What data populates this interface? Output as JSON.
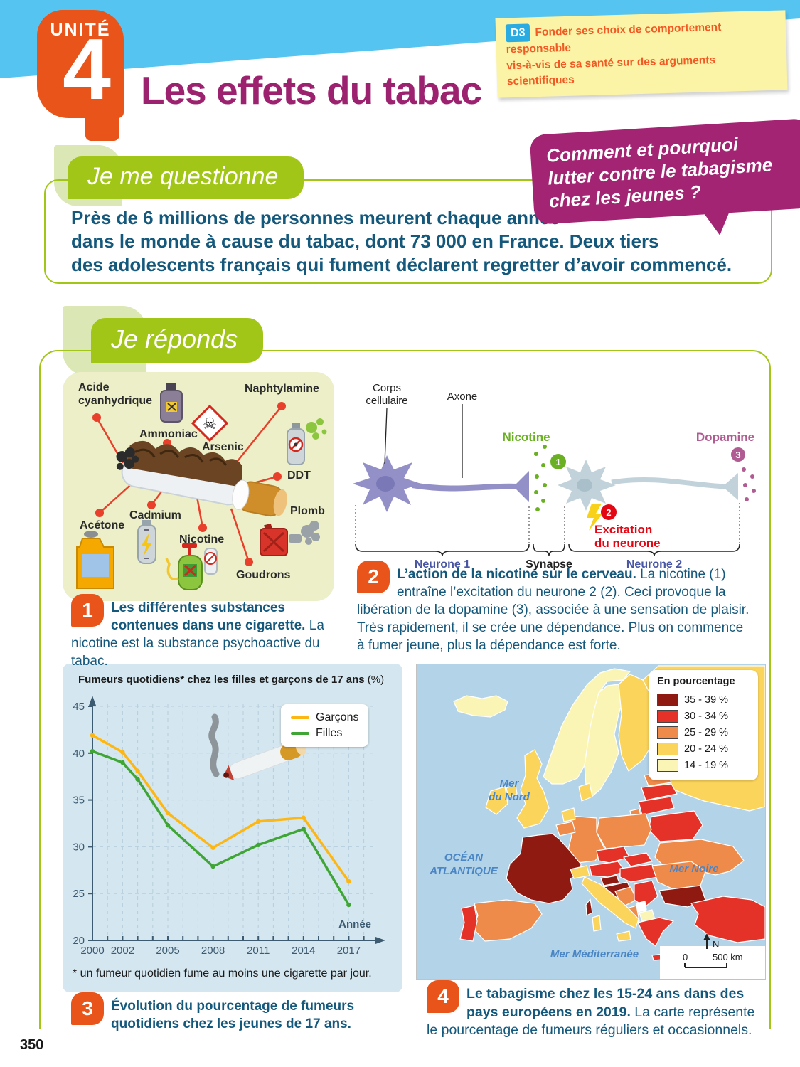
{
  "page_number": "350",
  "colors": {
    "green": "#a2c617",
    "orange": "#e8541a",
    "title_purple": "#9c2270",
    "bubble_purple": "#a32472",
    "dark_blue": "#14587c",
    "sky_blue": "#56c4f0",
    "note_bg": "#fbf4a6",
    "note_text": "#f15a24",
    "d3_blue": "#2aace2",
    "nicotine_green": "#6ab023",
    "dopamine_mauve": "#b05b92",
    "excitation_red": "#e30613"
  },
  "header": {
    "unit_label": "UNITÉ",
    "unit_number": "4",
    "title": "Les effets du tabac",
    "competence": {
      "badge": "D3",
      "line1": "Fonder ses choix de comportement responsable",
      "line2": "vis-à-vis de sa santé sur des arguments scientifiques"
    }
  },
  "question_section": {
    "banner": "Je me questionne",
    "intro_lines": [
      "Près de 6 millions de personnes meurent chaque année",
      "dans le monde à cause du tabac, dont 73 000 en France. Deux tiers",
      "des adolescents français qui fument déclarent regretter d’avoir commencé."
    ],
    "bubble_lines": [
      "Comment et pourquoi",
      "lutter contre le tabagisme",
      "chez les jeunes ?"
    ]
  },
  "answer_section": {
    "banner": "Je réponds"
  },
  "figure1": {
    "number": "1",
    "caption_bold": "Les différentes substances contenues dans une cigarette.",
    "caption_text": " La nicotine est la substance psychoactive du tabac.",
    "labels": {
      "acide": "Acide cyanhydrique",
      "ammoniac": "Ammoniac",
      "arsenic": "Arsenic",
      "naphtylamine": "Naphtylamine",
      "ddt": "DDT",
      "plomb": "Plomb",
      "goudrons": "Goudrons",
      "nicotine": "Nicotine",
      "cadmium": "Cadmium",
      "acetone": "Acétone"
    },
    "icons": {
      "skull": "☠"
    }
  },
  "figure2": {
    "number": "2",
    "caption_bold": "L’action de la nicotine sur le cerveau.",
    "caption_text": " La nicotine (1) entraîne l’excitation du neurone 2 (2). Ceci provoque la libération de la dopamine (3), associée à une sensation de plaisir. Très rapidement, il se crée une dépendance. Plus on commence à fumer jeune, plus la dépendance est forte.",
    "labels": {
      "corps1": "Corps",
      "corps2": "cellulaire",
      "axone": "Axone",
      "nicotine": "Nicotine",
      "dopamine": "Dopamine",
      "excitation1": "Excitation",
      "excitation2": "du neurone",
      "neurone1": "Neurone 1",
      "synapse": "Synapse",
      "neurone2": "Neurone 2",
      "step1": "1",
      "step2": "2",
      "step3": "3"
    }
  },
  "figure3": {
    "number": "3",
    "title_bold": "Fumeurs quotidiens* chez les filles et garçons de 17 ans",
    "title_unit": " (%)",
    "footnote": "* un fumeur quotidien fume au moins une cigarette par jour.",
    "caption_bold": "Évolution du pourcentage de fumeurs quotidiens chez les jeunes de 17 ans."
  },
  "chart_data": {
    "type": "line",
    "title": "Fumeurs quotidiens* chez les filles et garçons de 17 ans (%)",
    "x": [
      2000,
      2002,
      2003,
      2005,
      2008,
      2011,
      2014,
      2017
    ],
    "series": [
      {
        "name": "Garçons",
        "color": "#fdb714",
        "values": [
          41.9,
          40.1,
          38.1,
          33.6,
          29.9,
          32.7,
          33.1,
          26.3
        ]
      },
      {
        "name": "Filles",
        "color": "#3fa535",
        "values": [
          40.2,
          39.0,
          37.2,
          32.3,
          27.9,
          30.2,
          31.9,
          23.8
        ]
      }
    ],
    "xticks": [
      2000,
      2002,
      2005,
      2008,
      2011,
      2014,
      2017
    ],
    "yticks": [
      20,
      25,
      30,
      35,
      40,
      45
    ],
    "ylim": [
      20,
      45
    ],
    "xlabel": "Année",
    "grid": "dashed",
    "legend_position": "top-right"
  },
  "figure4": {
    "number": "4",
    "caption_bold": "Le tabagisme chez les 15-24 ans dans des pays européens en 2019.",
    "caption_text": " La carte représente le pourcentage de fumeurs réguliers et occasionnels.",
    "legend": {
      "title": "En pourcentage",
      "items": [
        {
          "label": "35 - 39 %",
          "color": "#8e1a12"
        },
        {
          "label": "30 - 34 %",
          "color": "#e53229"
        },
        {
          "label": "25 - 29 %",
          "color": "#ef8b4a"
        },
        {
          "label": "20 - 24 %",
          "color": "#fbd45c"
        },
        {
          "label": "14 - 19 %",
          "color": "#fbf5b5"
        }
      ]
    },
    "seas": {
      "nord1": "Mer",
      "nord2": "du Nord",
      "atl1": "OCÉAN",
      "atl2": "ATLANTIQUE",
      "noire": "Mer Noire",
      "med": "Mer Méditerranée"
    },
    "scale": {
      "north": "N",
      "zero": "0",
      "label": "500 km"
    }
  }
}
